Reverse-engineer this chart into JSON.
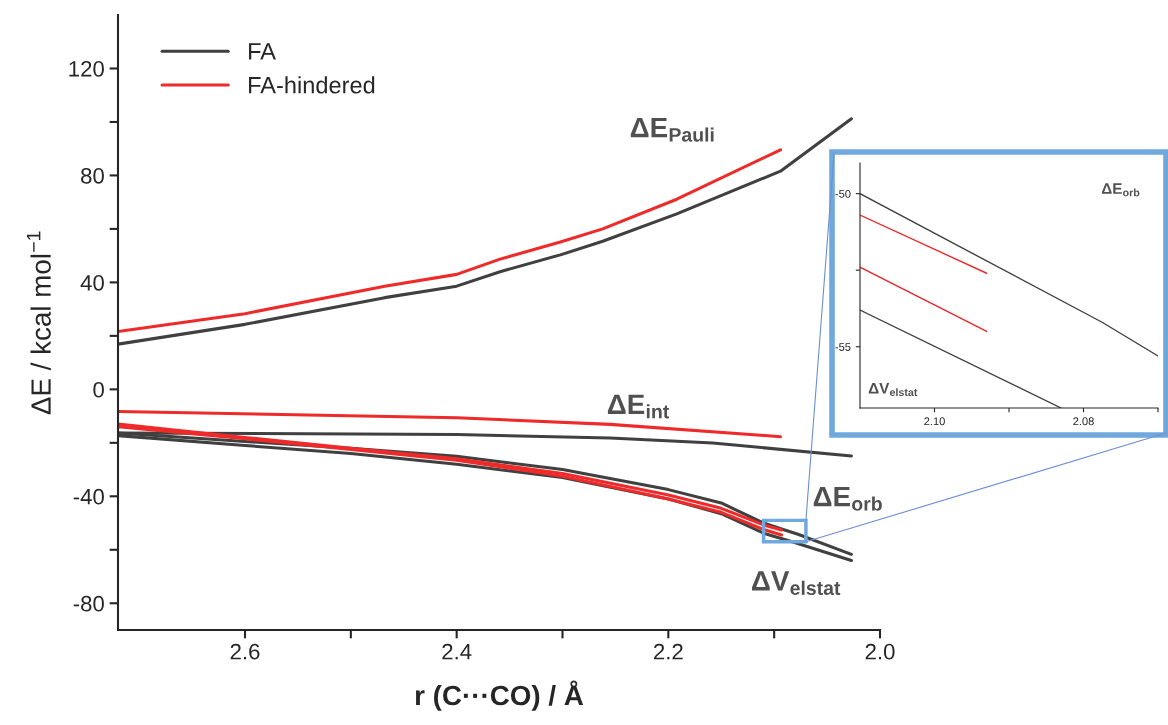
{
  "chart_data": [
    {
      "type": "line",
      "xlabel": "r (C···CO) / Å",
      "ylabel": "ΔE / kcal mol$^{−1}$",
      "xlim": [
        2.72,
        2.0
      ],
      "ylim": [
        -90,
        140
      ],
      "xticks": [
        2.6,
        {
          "value": 2.5,
          "label": null
        },
        2.4,
        {
          "value": 2.3,
          "label": null
        },
        2.2,
        {
          "value": 2.1,
          "label": null
        },
        {
          "value": 2.0,
          "label": "2.0"
        }
      ],
      "yticks": [
        -80,
        {
          "value": -60,
          "label": null
        },
        -40,
        {
          "value": -20,
          "label": null
        },
        0,
        {
          "value": 20,
          "label": null
        },
        40,
        {
          "value": 60,
          "label": null
        },
        80,
        {
          "value": 100,
          "label": null
        },
        120
      ],
      "legend": "top left",
      "grid": false,
      "series": [
        {
          "name": "FA",
          "color": "#404040",
          "x": [
            2.72,
            2.6,
            2.468,
            2.4,
            2.359,
            2.302,
            2.262,
            2.192,
            2.094,
            2.027
          ],
          "values": [
            16.9,
            24.3,
            34.3,
            38.6,
            44.0,
            50.3,
            55.4,
            65.6,
            81.6,
            101.2
          ]
        },
        {
          "name": "FA-hindered",
          "color": "#ee2a2a",
          "x": [
            2.72,
            2.6,
            2.468,
            2.4,
            2.359,
            2.302,
            2.262,
            2.192,
            2.094
          ],
          "values": [
            21.6,
            28.3,
            38.6,
            43.0,
            48.7,
            55.1,
            60.0,
            71.1,
            89.6
          ]
        },
        {
          "color": "#404040",
          "x": [
            2.72,
            2.4,
            2.255,
            2.158,
            2.027
          ],
          "values": [
            -16.3,
            -16.9,
            -18.2,
            -20.1,
            -24.9
          ]
        },
        {
          "color": "#ee2a2a",
          "x": [
            2.72,
            2.4,
            2.255,
            2.094
          ],
          "values": [
            -8.3,
            -10.6,
            -13.1,
            -17.7
          ]
        },
        {
          "color": "#404040",
          "x": [
            2.72,
            2.6,
            2.5,
            2.4,
            2.3,
            2.2,
            2.15,
            2.11,
            2.093,
            2.0775,
            2.027
          ],
          "values": [
            -16.3,
            -19.5,
            -22,
            -25,
            -30,
            -37.5,
            -42.5,
            -50.0,
            -52.2,
            -54.2,
            -61.7
          ]
        },
        {
          "color": "#404040",
          "x": [
            2.72,
            2.6,
            2.5,
            2.4,
            2.3,
            2.2,
            2.15,
            2.11,
            2.083,
            2.027
          ],
          "values": [
            -17.3,
            -21,
            -24,
            -28,
            -33,
            -41,
            -46.5,
            -53.8,
            -57.0,
            -64.0
          ]
        },
        {
          "color": "#ee2a2a",
          "x": [
            2.72,
            2.6,
            2.5,
            2.4,
            2.3,
            2.2,
            2.15,
            2.11,
            2.093
          ],
          "values": [
            -13.0,
            -18,
            -22,
            -26,
            -31.5,
            -39.5,
            -44.5,
            -50.7,
            -52.6
          ]
        },
        {
          "color": "#ee2a2a",
          "x": [
            2.72,
            2.6,
            2.5,
            2.4,
            2.3,
            2.2,
            2.15,
            2.11,
            2.093
          ],
          "values": [
            -14.0,
            -18.5,
            -22.5,
            -26.5,
            -32.5,
            -41,
            -46,
            -52.4,
            -54.5
          ]
        }
      ],
      "annotations": [
        "ΔE$_{Pauli}$",
        "ΔE$_{int}$",
        "ΔE$_{orb}$",
        "ΔV$_{elstat}$"
      ]
    },
    {
      "type": "line",
      "xlim": [
        2.11,
        2.07
      ],
      "ylim": [
        -57,
        -49
      ],
      "xticks": [
        {
          "value": 2.1,
          "label": "2.10"
        },
        {
          "value": 2.09,
          "label": null
        },
        {
          "value": 2.08,
          "label": "2.08"
        },
        {
          "value": 2.07,
          "label": null
        }
      ],
      "yticks": [
        -55,
        {
          "value": -52.5,
          "label": null
        },
        -50
      ],
      "grid": false,
      "series": [
        {
          "color": "#404040",
          "x": [
            2.11,
            2.0775,
            2.07
          ],
          "values": [
            -50.0,
            -54.2,
            -55.3
          ]
        },
        {
          "color": "#ee2a2a",
          "x": [
            2.11,
            2.093
          ],
          "values": [
            -50.7,
            -52.6
          ]
        },
        {
          "color": "#ee2a2a",
          "x": [
            2.11,
            2.093
          ],
          "values": [
            -52.4,
            -54.5
          ]
        },
        {
          "color": "#404040",
          "x": [
            2.11,
            2.083
          ],
          "values": [
            -53.8,
            -57.0
          ]
        }
      ],
      "annotations": [
        "ΔE$_{orb}$",
        "ΔV$_{elstat}$"
      ]
    }
  ]
}
